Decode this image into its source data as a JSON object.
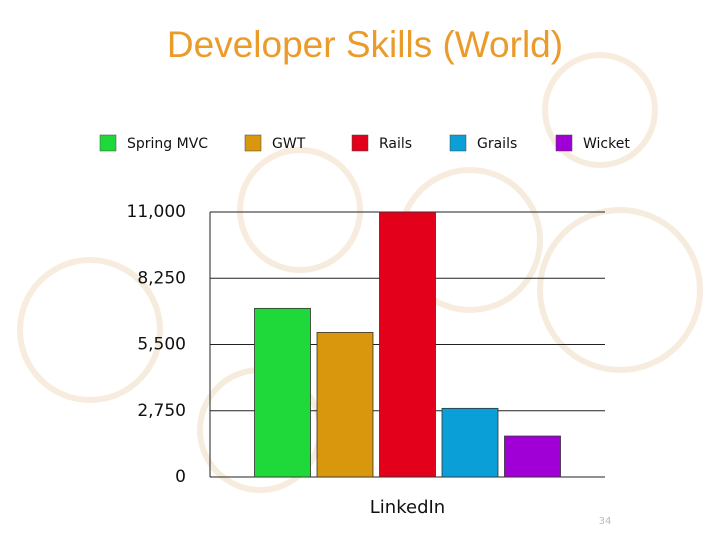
{
  "chart_data": {
    "type": "bar",
    "title": "Developer Skills (World)",
    "categories": [
      "LinkedIn"
    ],
    "series": [
      {
        "name": "Spring MVC",
        "color": "#1fd83a",
        "values": [
          7000
        ]
      },
      {
        "name": "GWT",
        "color": "#d8970c",
        "values": [
          6000
        ]
      },
      {
        "name": "Rails",
        "color": "#e2001b",
        "values": [
          11000
        ]
      },
      {
        "name": "Grails",
        "color": "#0b9fd8",
        "values": [
          2850
        ]
      },
      {
        "name": "Wicket",
        "color": "#a000d6",
        "values": [
          1700
        ]
      }
    ],
    "ylim": [
      0,
      11000
    ],
    "yticks": [
      0,
      {
        "value": 2750,
        "label": "2,750"
      },
      {
        "value": 5500,
        "label": "5,500"
      },
      {
        "value": 8250,
        "label": "8,250"
      },
      {
        "value": 11000,
        "label": "11,000"
      }
    ],
    "grid": true,
    "legend": "top"
  },
  "page_number": "34"
}
